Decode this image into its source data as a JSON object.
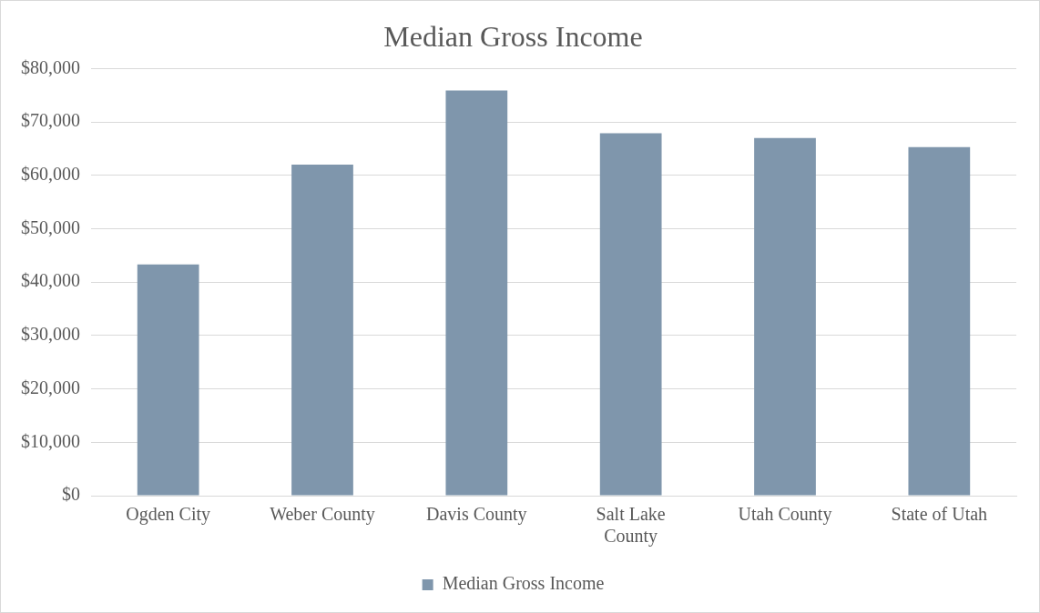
{
  "chart_data": {
    "type": "bar",
    "title": "Median Gross Income",
    "categories": [
      "Ogden City",
      "Weber County",
      "Davis County",
      "Salt Lake County",
      "Utah County",
      "State of Utah"
    ],
    "series": [
      {
        "name": "Median Gross Income",
        "color": "#7f96ac",
        "values": [
          43300,
          62000,
          75900,
          67900,
          67000,
          65300
        ]
      }
    ],
    "ylim": [
      0,
      80000
    ],
    "yticks": [
      {
        "value": 0,
        "label": "$0"
      },
      {
        "value": 10000,
        "label": "$10,000"
      },
      {
        "value": 20000,
        "label": "$20,000"
      },
      {
        "value": 30000,
        "label": "$30,000"
      },
      {
        "value": 40000,
        "label": "$40,000"
      },
      {
        "value": 50000,
        "label": "$50,000"
      },
      {
        "value": 60000,
        "label": "$60,000"
      },
      {
        "value": 70000,
        "label": "$70,000"
      },
      {
        "value": 80000,
        "label": "$80,000"
      }
    ],
    "grid": "y",
    "legend": "bottom"
  }
}
